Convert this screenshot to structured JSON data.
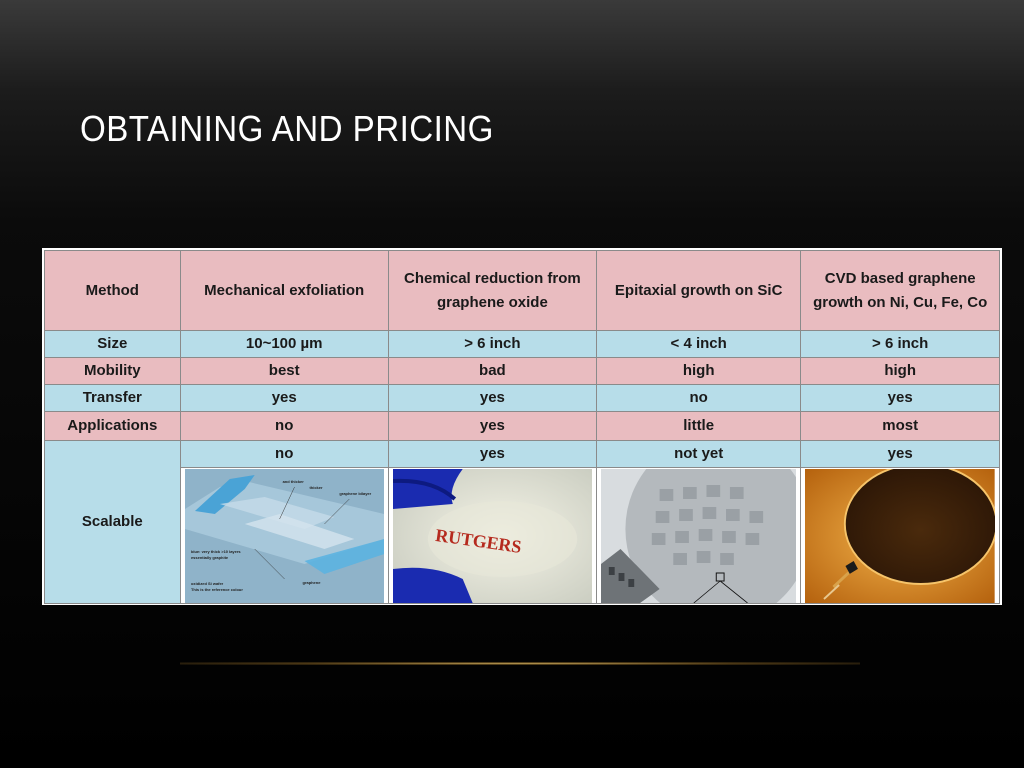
{
  "slide": {
    "title": "OBTAINING AND PRICING"
  },
  "table": {
    "header": {
      "label": "Method",
      "columns": [
        "Mechanical exfoliation",
        "Chemical reduction from graphene oxide",
        "Epitaxial growth on SiC",
        "CVD based graphene growth on Ni, Cu, Fe, Co"
      ]
    },
    "rows": [
      {
        "label": "Size",
        "values": [
          "10~100 µm",
          "> 6 inch",
          "< 4 inch",
          "> 6 inch"
        ]
      },
      {
        "label": "Mobility",
        "values": [
          "best",
          "bad",
          "high",
          "high"
        ]
      },
      {
        "label": "Transfer",
        "values": [
          "yes",
          "yes",
          "no",
          "yes"
        ]
      },
      {
        "label": "Applications",
        "values": [
          "no",
          "yes",
          "little",
          "most"
        ]
      }
    ],
    "scalable": {
      "label": "Scalable",
      "values": [
        "no",
        "yes",
        "not yet",
        "yes"
      ]
    },
    "images": {
      "exfoliation_labels": [
        "and thicker",
        "thicker",
        "graphene bilayer",
        "blue: very thick >10 layers",
        "essentially graphite",
        "graphene",
        "oxidized Si wafer",
        "This is the reference colour"
      ],
      "rutgers_text": "RUTGERS"
    }
  },
  "colors": {
    "header_row": "#e9bcc0",
    "alt_row": "#b7dde9"
  }
}
